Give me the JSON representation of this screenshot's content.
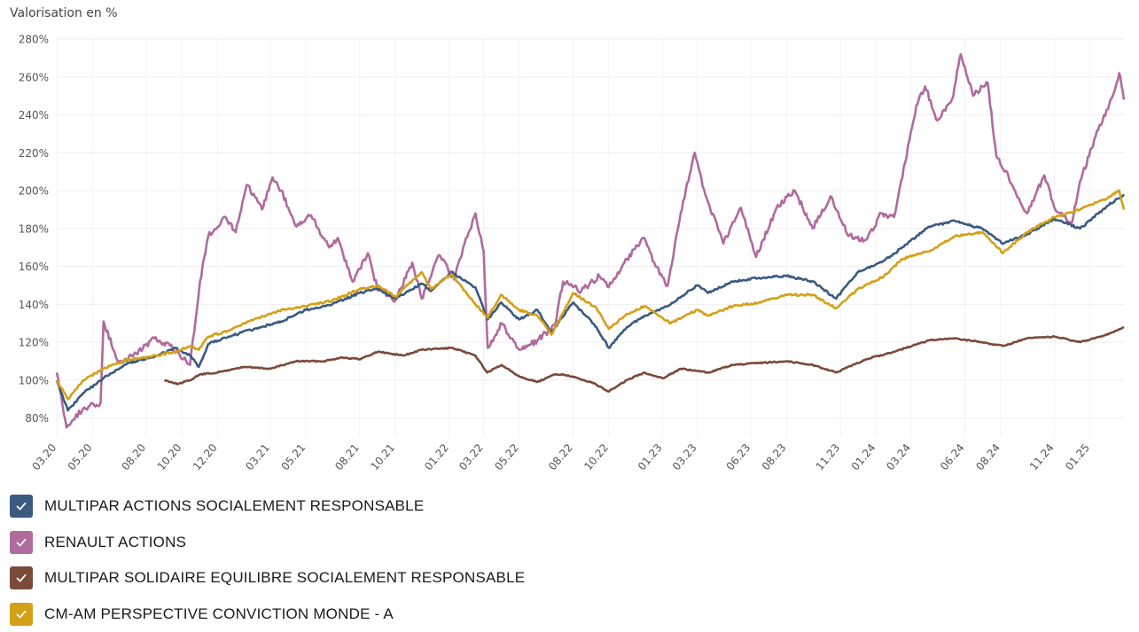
{
  "chart_data": {
    "type": "line",
    "ylabel": "Valorisation en %",
    "ylim": [
      70,
      280
    ],
    "yticks": [
      80,
      100,
      120,
      140,
      160,
      180,
      200,
      220,
      240,
      260,
      280
    ],
    "ytick_labels": [
      "80%",
      "100%",
      "120%",
      "140%",
      "160%",
      "180%",
      "200%",
      "220%",
      "240%",
      "260%",
      "280%"
    ],
    "xlim": [
      "2020-03-01",
      "2025-02-28"
    ],
    "x_ticks": [
      "2020-03-01",
      "2020-05-01",
      "2020-08-01",
      "2020-10-01",
      "2020-12-01",
      "2021-03-01",
      "2021-05-01",
      "2021-08-01",
      "2021-10-01",
      "2022-01-01",
      "2022-03-01",
      "2022-05-01",
      "2022-08-01",
      "2022-10-01",
      "2023-01-01",
      "2023-03-01",
      "2023-06-01",
      "2023-08-01",
      "2023-11-01",
      "2024-01-01",
      "2024-03-01",
      "2024-06-01",
      "2024-08-01",
      "2024-11-01",
      "2025-01-01"
    ],
    "x_tick_labels": [
      "03.20",
      "05.20",
      "08.20",
      "10.20",
      "12.20",
      "03.21",
      "05.21",
      "08.21",
      "10.21",
      "01.22",
      "03.22",
      "05.22",
      "08.22",
      "10.22",
      "01.23",
      "03.23",
      "06.23",
      "08.23",
      "11.23",
      "01.24",
      "03.24",
      "06.24",
      "08.24",
      "11.24",
      "01.25"
    ],
    "grid": true,
    "legend_position": "bottom-left",
    "series": [
      {
        "name": "MULTIPAR ACTIONS SOCIALEMENT RESPONSABLE",
        "color": "#3a5a80",
        "points": [
          [
            "2020-03-01",
            100
          ],
          [
            "2020-03-20",
            84
          ],
          [
            "2020-04-15",
            93
          ],
          [
            "2020-05-20",
            101
          ],
          [
            "2020-07-01",
            109
          ],
          [
            "2020-08-20",
            113
          ],
          [
            "2020-09-20",
            117
          ],
          [
            "2020-10-15",
            113
          ],
          [
            "2020-10-30",
            107
          ],
          [
            "2020-11-15",
            119
          ],
          [
            "2020-12-20",
            123
          ],
          [
            "2021-02-01",
            127
          ],
          [
            "2021-03-20",
            131
          ],
          [
            "2021-05-01",
            137
          ],
          [
            "2021-06-15",
            140
          ],
          [
            "2021-08-01",
            146
          ],
          [
            "2021-09-01",
            148
          ],
          [
            "2021-10-01",
            143
          ],
          [
            "2021-11-15",
            151
          ],
          [
            "2021-12-01",
            147
          ],
          [
            "2022-01-05",
            157
          ],
          [
            "2022-02-15",
            149
          ],
          [
            "2022-03-08",
            132
          ],
          [
            "2022-03-31",
            141
          ],
          [
            "2022-05-01",
            132
          ],
          [
            "2022-06-01",
            137
          ],
          [
            "2022-06-25",
            125
          ],
          [
            "2022-08-01",
            141
          ],
          [
            "2022-09-10",
            128
          ],
          [
            "2022-10-01",
            117
          ],
          [
            "2022-11-01",
            128
          ],
          [
            "2022-12-01",
            134
          ],
          [
            "2023-01-15",
            140
          ],
          [
            "2023-03-01",
            150
          ],
          [
            "2023-03-20",
            146
          ],
          [
            "2023-05-01",
            152
          ],
          [
            "2023-06-15",
            154
          ],
          [
            "2023-08-01",
            155
          ],
          [
            "2023-09-15",
            152
          ],
          [
            "2023-10-25",
            143
          ],
          [
            "2023-12-01",
            157
          ],
          [
            "2024-01-15",
            163
          ],
          [
            "2024-02-15",
            170
          ],
          [
            "2024-04-01",
            181
          ],
          [
            "2024-05-15",
            184
          ],
          [
            "2024-07-01",
            180
          ],
          [
            "2024-08-05",
            172
          ],
          [
            "2024-09-15",
            177
          ],
          [
            "2024-11-01",
            185
          ],
          [
            "2024-12-15",
            180
          ],
          [
            "2025-01-31",
            192
          ],
          [
            "2025-02-28",
            198
          ]
        ]
      },
      {
        "name": "RENAULT ACTIONS",
        "color": "#b06a9e",
        "points": [
          [
            "2020-03-01",
            104
          ],
          [
            "2020-03-18",
            75
          ],
          [
            "2020-04-15",
            85
          ],
          [
            "2020-05-15",
            88
          ],
          [
            "2020-05-20",
            131
          ],
          [
            "2020-06-15",
            109
          ],
          [
            "2020-07-15",
            114
          ],
          [
            "2020-08-15",
            122
          ],
          [
            "2020-09-15",
            117
          ],
          [
            "2020-10-15",
            108
          ],
          [
            "2020-11-01",
            152
          ],
          [
            "2020-11-15",
            176
          ],
          [
            "2020-12-15",
            186
          ],
          [
            "2021-01-01",
            178
          ],
          [
            "2021-01-20",
            203
          ],
          [
            "2021-02-15",
            190
          ],
          [
            "2021-03-05",
            207
          ],
          [
            "2021-03-20",
            200
          ],
          [
            "2021-04-15",
            181
          ],
          [
            "2021-05-10",
            187
          ],
          [
            "2021-06-10",
            170
          ],
          [
            "2021-06-25",
            175
          ],
          [
            "2021-07-20",
            152
          ],
          [
            "2021-08-15",
            167
          ],
          [
            "2021-08-31",
            149
          ],
          [
            "2021-10-01",
            142
          ],
          [
            "2021-10-30",
            162
          ],
          [
            "2021-11-15",
            143
          ],
          [
            "2021-12-15",
            166
          ],
          [
            "2022-01-10",
            153
          ],
          [
            "2022-01-25",
            170
          ],
          [
            "2022-02-15",
            188
          ],
          [
            "2022-03-01",
            168
          ],
          [
            "2022-03-08",
            117
          ],
          [
            "2022-04-01",
            130
          ],
          [
            "2022-05-01",
            116
          ],
          [
            "2022-06-01",
            121
          ],
          [
            "2022-07-01",
            129
          ],
          [
            "2022-07-15",
            152
          ],
          [
            "2022-08-15",
            147
          ],
          [
            "2022-09-15",
            155
          ],
          [
            "2022-10-01",
            149
          ],
          [
            "2022-11-01",
            164
          ],
          [
            "2022-12-01",
            175
          ],
          [
            "2022-12-20",
            160
          ],
          [
            "2023-01-10",
            150
          ],
          [
            "2023-02-01",
            188
          ],
          [
            "2023-02-25",
            220
          ],
          [
            "2023-03-15",
            198
          ],
          [
            "2023-04-15",
            172
          ],
          [
            "2023-05-15",
            191
          ],
          [
            "2023-06-10",
            165
          ],
          [
            "2023-07-15",
            191
          ],
          [
            "2023-08-15",
            200
          ],
          [
            "2023-09-15",
            180
          ],
          [
            "2023-10-15",
            197
          ],
          [
            "2023-11-15",
            176
          ],
          [
            "2023-12-15",
            174
          ],
          [
            "2024-01-10",
            188
          ],
          [
            "2024-02-01",
            186
          ],
          [
            "2024-02-20",
            215
          ],
          [
            "2024-03-10",
            245
          ],
          [
            "2024-03-25",
            255
          ],
          [
            "2024-04-15",
            237
          ],
          [
            "2024-05-10",
            248
          ],
          [
            "2024-05-25",
            272
          ],
          [
            "2024-06-15",
            250
          ],
          [
            "2024-07-10",
            257
          ],
          [
            "2024-07-25",
            218
          ],
          [
            "2024-08-15",
            207
          ],
          [
            "2024-09-15",
            188
          ],
          [
            "2024-10-15",
            208
          ],
          [
            "2024-11-01",
            191
          ],
          [
            "2024-12-01",
            183
          ],
          [
            "2024-12-15",
            205
          ],
          [
            "2025-01-15",
            232
          ],
          [
            "2025-02-10",
            251
          ],
          [
            "2025-02-20",
            262
          ],
          [
            "2025-02-28",
            248
          ]
        ]
      },
      {
        "name": "MULTIPAR SOLIDAIRE EQUILIBRE SOCIALEMENT RESPONSABLE",
        "color": "#7a4a3a",
        "points": [
          [
            "2020-09-01",
            100
          ],
          [
            "2020-09-25",
            98
          ],
          [
            "2020-10-15",
            100
          ],
          [
            "2020-11-01",
            103
          ],
          [
            "2020-12-01",
            104
          ],
          [
            "2021-01-15",
            107
          ],
          [
            "2021-03-01",
            106
          ],
          [
            "2021-04-15",
            110
          ],
          [
            "2021-06-01",
            110
          ],
          [
            "2021-07-01",
            112
          ],
          [
            "2021-08-01",
            111
          ],
          [
            "2021-09-01",
            115
          ],
          [
            "2021-10-15",
            113
          ],
          [
            "2021-11-15",
            116
          ],
          [
            "2022-01-05",
            117
          ],
          [
            "2022-02-15",
            113
          ],
          [
            "2022-03-07",
            104
          ],
          [
            "2022-04-01",
            108
          ],
          [
            "2022-05-01",
            102
          ],
          [
            "2022-06-01",
            99
          ],
          [
            "2022-07-01",
            103
          ],
          [
            "2022-07-15",
            103
          ],
          [
            "2022-09-01",
            99
          ],
          [
            "2022-10-01",
            94
          ],
          [
            "2022-11-01",
            100
          ],
          [
            "2022-12-01",
            104
          ],
          [
            "2023-01-01",
            101
          ],
          [
            "2023-02-01",
            106
          ],
          [
            "2023-03-20",
            104
          ],
          [
            "2023-05-01",
            108
          ],
          [
            "2023-06-15",
            109
          ],
          [
            "2023-08-01",
            110
          ],
          [
            "2023-09-15",
            108
          ],
          [
            "2023-10-25",
            104
          ],
          [
            "2023-12-15",
            111
          ],
          [
            "2024-02-01",
            115
          ],
          [
            "2024-04-01",
            121
          ],
          [
            "2024-05-15",
            122
          ],
          [
            "2024-07-01",
            120
          ],
          [
            "2024-08-05",
            118
          ],
          [
            "2024-09-15",
            122
          ],
          [
            "2024-11-01",
            123
          ],
          [
            "2024-12-15",
            120
          ],
          [
            "2025-01-31",
            124
          ],
          [
            "2025-02-28",
            128
          ]
        ]
      },
      {
        "name": "CM-AM PERSPECTIVE CONVICTION MONDE - A",
        "color": "#d4a017",
        "points": [
          [
            "2020-03-01",
            100
          ],
          [
            "2020-03-20",
            90
          ],
          [
            "2020-04-15",
            100
          ],
          [
            "2020-05-20",
            106
          ],
          [
            "2020-07-01",
            111
          ],
          [
            "2020-08-20",
            113
          ],
          [
            "2020-09-20",
            115
          ],
          [
            "2020-10-15",
            118
          ],
          [
            "2020-10-30",
            116
          ],
          [
            "2020-11-15",
            123
          ],
          [
            "2020-12-20",
            126
          ],
          [
            "2021-02-01",
            132
          ],
          [
            "2021-03-20",
            137
          ],
          [
            "2021-05-01",
            139
          ],
          [
            "2021-06-15",
            142
          ],
          [
            "2021-08-01",
            148
          ],
          [
            "2021-09-01",
            150
          ],
          [
            "2021-10-01",
            144
          ],
          [
            "2021-11-15",
            157
          ],
          [
            "2021-12-01",
            148
          ],
          [
            "2022-01-05",
            156
          ],
          [
            "2022-02-15",
            140
          ],
          [
            "2022-03-08",
            133
          ],
          [
            "2022-03-31",
            145
          ],
          [
            "2022-05-01",
            137
          ],
          [
            "2022-06-01",
            134
          ],
          [
            "2022-06-25",
            124
          ],
          [
            "2022-08-01",
            146
          ],
          [
            "2022-09-10",
            138
          ],
          [
            "2022-10-01",
            127
          ],
          [
            "2022-11-01",
            135
          ],
          [
            "2022-12-01",
            139
          ],
          [
            "2023-01-15",
            130
          ],
          [
            "2023-03-01",
            137
          ],
          [
            "2023-03-20",
            134
          ],
          [
            "2023-05-01",
            139
          ],
          [
            "2023-06-15",
            141
          ],
          [
            "2023-08-01",
            145
          ],
          [
            "2023-09-15",
            145
          ],
          [
            "2023-10-25",
            138
          ],
          [
            "2023-12-01",
            148
          ],
          [
            "2024-01-15",
            155
          ],
          [
            "2024-02-15",
            164
          ],
          [
            "2024-04-01",
            168
          ],
          [
            "2024-05-15",
            176
          ],
          [
            "2024-07-01",
            178
          ],
          [
            "2024-08-05",
            167
          ],
          [
            "2024-09-15",
            178
          ],
          [
            "2024-11-01",
            186
          ],
          [
            "2024-12-15",
            190
          ],
          [
            "2025-01-31",
            196
          ],
          [
            "2025-02-20",
            200
          ],
          [
            "2025-02-28",
            190
          ]
        ]
      }
    ]
  }
}
